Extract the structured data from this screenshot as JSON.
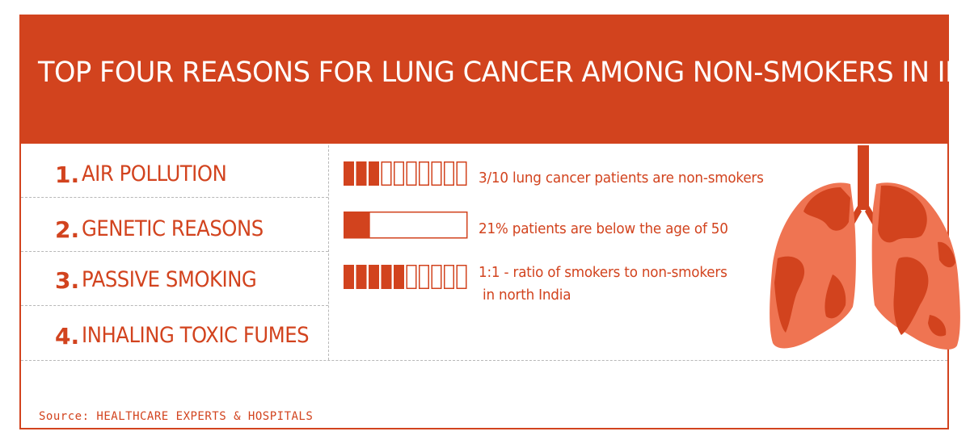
{
  "colors": {
    "accent": "#d2431e",
    "lung_light": "#ef7452",
    "divider": "#b8b8b8"
  },
  "title": "TOP FOUR REASONS FOR LUNG CANCER AMONG NON-SMOKERS IN INDIA",
  "reasons": [
    {
      "num": "1.",
      "label": "AIR POLLUTION"
    },
    {
      "num": "2.",
      "label": "GENETIC REASONS"
    },
    {
      "num": "3.",
      "label": "PASSIVE SMOKING"
    },
    {
      "num": "4.",
      "label": "INHALING TOXIC FUMES"
    }
  ],
  "chart_data": {
    "type": "bar",
    "title": "TOP FOUR REASONS FOR LUNG CANCER AMONG NON-SMOKERS IN INDIA",
    "stats": [
      {
        "kind": "segments",
        "filled": 3,
        "total": 10,
        "text": "3/10 lung cancer patients are non-smokers"
      },
      {
        "kind": "progress",
        "value": 21,
        "max": 100,
        "text": "21% patients are below the age of 50"
      },
      {
        "kind": "segments",
        "filled": 5,
        "total": 10,
        "text_line1": "1:1 - ratio of smokers to non-smokers",
        "text_line2": "in north India"
      }
    ]
  },
  "illustration": {
    "icon": "lungs-world-map-icon"
  },
  "source": "Source: HEALTHCARE EXPERTS & HOSPITALS"
}
